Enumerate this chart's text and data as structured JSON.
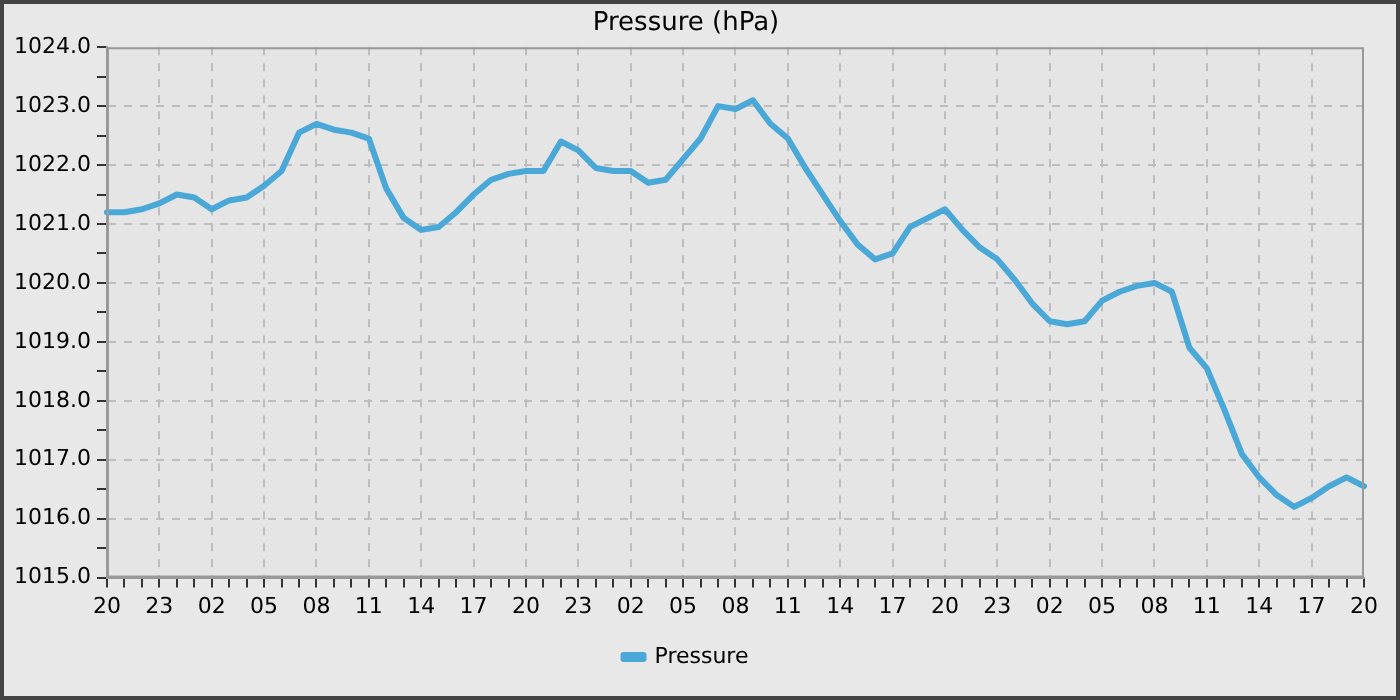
{
  "chart_data": {
    "type": "line",
    "title": "Pressure (hPa)",
    "categories": [
      "20",
      null,
      null,
      "23",
      null,
      null,
      "02",
      null,
      null,
      "05",
      null,
      null,
      "08",
      null,
      null,
      "11",
      null,
      null,
      "14",
      null,
      null,
      "17",
      null,
      null,
      "20",
      null,
      null,
      "23",
      null,
      null,
      "02",
      null,
      null,
      "05",
      null,
      null,
      "08",
      null,
      null,
      "11",
      null,
      null,
      "14",
      null,
      null,
      "17",
      null,
      null,
      "20",
      null,
      null,
      "23",
      null,
      null,
      "02",
      null,
      null,
      "05",
      null,
      null,
      "08",
      null,
      null,
      "11",
      null,
      null,
      "14",
      null,
      null,
      "17",
      null,
      null,
      "20"
    ],
    "series": [
      {
        "name": "Pressure",
        "color": "#4aa8d8",
        "values": [
          1021.2,
          1021.2,
          1021.25,
          1021.35,
          1021.5,
          1021.45,
          1021.25,
          1021.4,
          1021.45,
          1021.65,
          1021.9,
          1022.55,
          1022.7,
          1022.6,
          1022.55,
          1022.45,
          1021.6,
          1021.1,
          1020.9,
          1020.95,
          1021.2,
          1021.5,
          1021.75,
          1021.85,
          1021.9,
          1021.9,
          1022.4,
          1022.25,
          1021.95,
          1021.9,
          1021.9,
          1021.7,
          1021.75,
          1022.1,
          1022.45,
          1023.0,
          1022.95,
          1023.1,
          1022.7,
          1022.45,
          1021.95,
          1021.5,
          1021.05,
          1020.65,
          1020.4,
          1020.5,
          1020.95,
          1021.1,
          1021.25,
          1020.9,
          1020.6,
          1020.4,
          1020.05,
          1019.65,
          1019.35,
          1019.3,
          1019.35,
          1019.7,
          1019.85,
          1019.95,
          1020.0,
          1019.85,
          1018.9,
          1018.55,
          1017.85,
          1017.1,
          1016.7,
          1016.4,
          1016.2,
          1016.35,
          1016.55,
          1016.7,
          1016.55
        ]
      }
    ],
    "ylim": [
      1015,
      1024
    ],
    "yticks": [
      {
        "value": 1015,
        "label": "1015.0"
      },
      {
        "value": 1015.5,
        "label": null
      },
      {
        "value": 1016,
        "label": "1016.0"
      },
      {
        "value": 1016.5,
        "label": null
      },
      {
        "value": 1017,
        "label": "1017.0"
      },
      {
        "value": 1017.5,
        "label": null
      },
      {
        "value": 1018,
        "label": "1018.0"
      },
      {
        "value": 1018.5,
        "label": null
      },
      {
        "value": 1019,
        "label": "1019.0"
      },
      {
        "value": 1019.5,
        "label": null
      },
      {
        "value": 1020,
        "label": "1020.0"
      },
      {
        "value": 1020.5,
        "label": null
      },
      {
        "value": 1021,
        "label": "1021.0"
      },
      {
        "value": 1021.5,
        "label": null
      },
      {
        "value": 1022,
        "label": "1022.0"
      },
      {
        "value": 1022.5,
        "label": null
      },
      {
        "value": 1023,
        "label": "1023.0"
      },
      {
        "value": 1023.5,
        "label": null
      },
      {
        "value": 1024,
        "label": "1024.0"
      }
    ],
    "grid": true,
    "legend": "bottom",
    "marker": "none",
    "line_style": "solid"
  }
}
